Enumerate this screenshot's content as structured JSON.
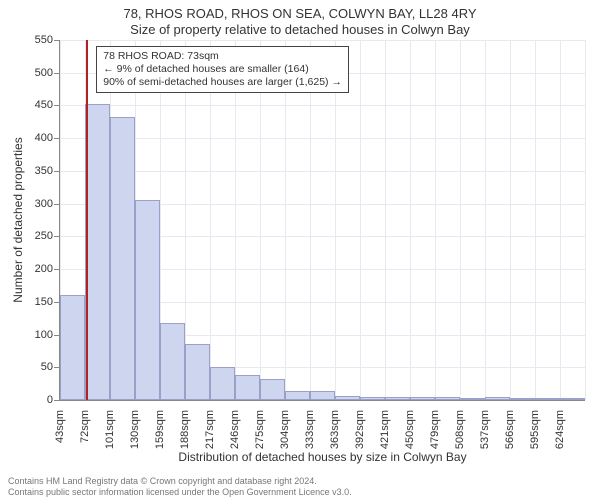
{
  "title": {
    "line1": "78, RHOS ROAD, RHOS ON SEA, COLWYN BAY, LL28 4RY",
    "line2": "Size of property relative to detached houses in Colwyn Bay",
    "fontsize": 13
  },
  "ylabel": "Number of detached properties",
  "xlabel": "Distribution of detached houses by size in Colwyn Bay",
  "label_fontsize": 12,
  "chart": {
    "type": "histogram",
    "background_color": "#ffffff",
    "grid_color": "#e8e8f0",
    "axis_color": "#888888",
    "bar_fill": "#cdd6ee",
    "bar_stroke": "#9aa0c8",
    "ylim": [
      0,
      550
    ],
    "yticks": [
      0,
      50,
      100,
      150,
      200,
      250,
      300,
      350,
      400,
      450,
      500,
      550
    ],
    "tick_fontsize": 11,
    "n_grid_v": 21,
    "x_ticks": [
      "43sqm",
      "72sqm",
      "101sqm",
      "130sqm",
      "159sqm",
      "188sqm",
      "217sqm",
      "246sqm",
      "275sqm",
      "304sqm",
      "333sqm",
      "363sqm",
      "392sqm",
      "421sqm",
      "450sqm",
      "479sqm",
      "508sqm",
      "537sqm",
      "566sqm",
      "595sqm",
      "624sqm"
    ],
    "values": [
      160,
      452,
      432,
      305,
      118,
      85,
      50,
      38,
      32,
      14,
      14,
      6,
      5,
      4,
      4,
      4,
      2,
      4,
      2,
      2,
      2
    ]
  },
  "marker": {
    "color": "#b22222",
    "bin_index": 1,
    "offset_in_bin": 0.05
  },
  "annotation": {
    "line1": "78 RHOS ROAD: 73sqm",
    "line2": "← 9% of detached houses are smaller (164)",
    "line3": "90% of semi-detached houses are larger (1,625) →",
    "fontsize": 10.5,
    "border_color": "#444444",
    "bg_color": "rgba(255,255,255,0.92)"
  },
  "footer": {
    "line1": "Contains HM Land Registry data © Crown copyright and database right 2024.",
    "line2": "Contains public sector information licensed under the Open Government Licence v3.0.",
    "color": "#777777",
    "fontsize": 9
  }
}
